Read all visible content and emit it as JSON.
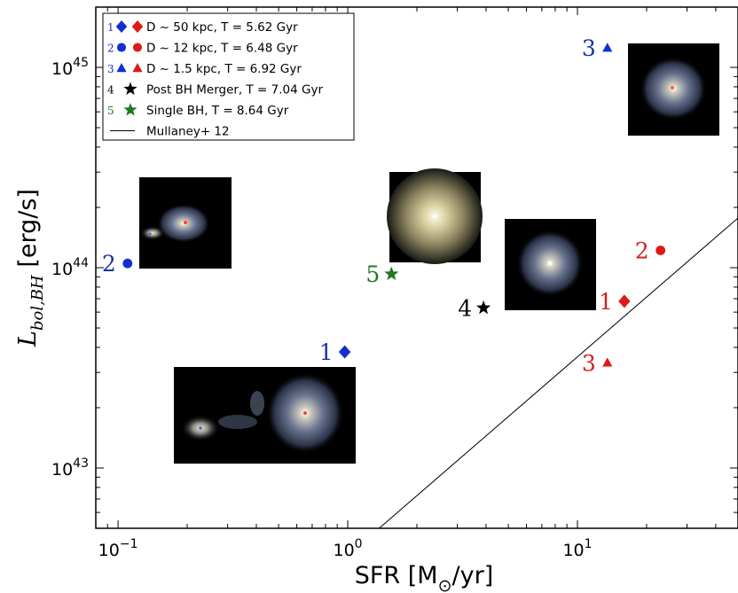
{
  "chart_data": {
    "type": "scatter",
    "xscale": "log",
    "yscale": "log",
    "xlim": [
      0.08,
      50
    ],
    "ylim": [
      5e+42,
      2e+45
    ],
    "xlabel_main": "SFR [M",
    "xlabel_sub": "⊙",
    "xlabel_end": "/yr]",
    "ylabel_main": "L",
    "ylabel_sub": "bol,BH",
    "ylabel_end": " [erg/s]",
    "xticks": [
      {
        "value": 0.1,
        "base": "10",
        "exp": "−1"
      },
      {
        "value": 1,
        "base": "10",
        "exp": "0"
      },
      {
        "value": 10,
        "base": "10",
        "exp": "1"
      }
    ],
    "yticks": [
      {
        "value": 1e+43,
        "base": "10",
        "exp": "43"
      },
      {
        "value": 1e+44,
        "base": "10",
        "exp": "44"
      },
      {
        "value": 1e+45,
        "base": "10",
        "exp": "45"
      }
    ],
    "points": [
      {
        "label": "1",
        "x": 0.97,
        "y": 3.8e+43,
        "marker": "diamond",
        "color": "#1030d0",
        "label_side": "left",
        "label_color": "#1a33a0"
      },
      {
        "label": "1",
        "x": 16.0,
        "y": 6.8e+43,
        "marker": "diamond",
        "color": "#e01818",
        "label_side": "left",
        "label_color": "#d42020"
      },
      {
        "label": "2",
        "x": 0.11,
        "y": 1.05e+44,
        "marker": "circle",
        "color": "#1030d0",
        "label_side": "left",
        "label_color": "#1a33a0"
      },
      {
        "label": "2",
        "x": 23.0,
        "y": 1.22e+44,
        "marker": "circle",
        "color": "#e01818",
        "label_side": "left",
        "label_color": "#d42020"
      },
      {
        "label": "3",
        "x": 13.5,
        "y": 1.25e+45,
        "marker": "triangle",
        "color": "#1030d0",
        "label_side": "left",
        "label_color": "#1a33a0"
      },
      {
        "label": "3",
        "x": 13.5,
        "y": 3.35e+43,
        "marker": "triangle",
        "color": "#e01818",
        "label_side": "left",
        "label_color": "#d42020"
      },
      {
        "label": "4",
        "x": 3.9,
        "y": 6.3e+43,
        "marker": "star",
        "color": "#000000",
        "label_side": "left",
        "label_color": "#000000"
      },
      {
        "label": "5",
        "x": 1.55,
        "y": 9.3e+43,
        "marker": "star",
        "color": "#1f7a1f",
        "label_side": "left",
        "label_color": "#1f7a1f"
      }
    ],
    "relation_line": {
      "name": "Mullaney+ 12",
      "points": [
        [
          1.37,
          5e+42
        ],
        [
          50,
          1.77e+44
        ]
      ]
    },
    "legend_placement": "top-left",
    "legend": [
      {
        "num": "1",
        "markers": [
          {
            "shape": "diamond",
            "color": "#1030d0"
          },
          {
            "shape": "diamond",
            "color": "#e01818"
          }
        ],
        "text": "D ~ 50 kpc, T = 5.62 Gyr"
      },
      {
        "num": "2",
        "markers": [
          {
            "shape": "circle",
            "color": "#1030d0"
          },
          {
            "shape": "circle",
            "color": "#e01818"
          }
        ],
        "text": "D ~ 12 kpc, T = 6.48 Gyr"
      },
      {
        "num": "3",
        "markers": [
          {
            "shape": "triangle",
            "color": "#1030d0"
          },
          {
            "shape": "triangle",
            "color": "#e01818"
          }
        ],
        "text": "D ~ 1.5 kpc, T = 6.92 Gyr"
      },
      {
        "num": "4",
        "markers": [
          {
            "shape": "star",
            "color": "#000000"
          }
        ],
        "text": "Post BH Merger, T = 7.04 Gyr"
      },
      {
        "num": "5",
        "markers": [
          {
            "shape": "star",
            "color": "#1f7a1f"
          }
        ],
        "text": "Single BH, T = 8.64 Gyr"
      },
      {
        "num": "",
        "markers": [
          {
            "shape": "line",
            "color": "#000000"
          }
        ],
        "text": "Mullaney+ 12"
      }
    ],
    "legend_num_colors": {
      "1": "#1a33a0",
      "2": "#1a33a0",
      "3": "#1a33a0",
      "4": "#000000",
      "5": "#1f7a1f"
    },
    "grid": false,
    "inset_images": [
      {
        "id": "stage-3-inset",
        "near_point": "3-blue"
      },
      {
        "id": "stage-2-inset",
        "near_point": "2-blue"
      },
      {
        "id": "stage-5-inset",
        "near_point": "5"
      },
      {
        "id": "stage-4-inset",
        "near_point": "4"
      },
      {
        "id": "stage-1-inset",
        "near_point": "1-blue"
      }
    ]
  }
}
